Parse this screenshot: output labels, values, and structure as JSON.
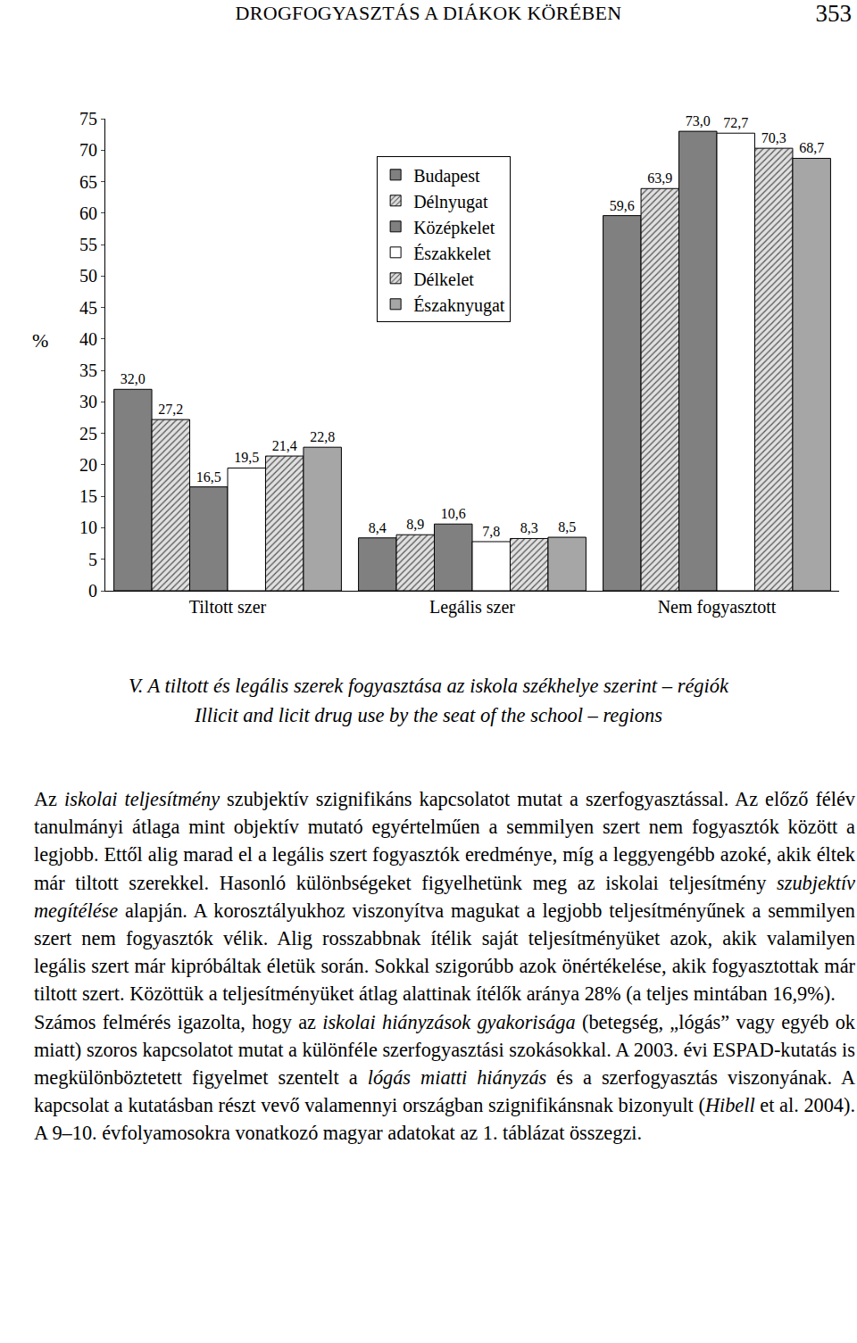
{
  "header": {
    "title": "DROGFOGYASZTÁS A DIÁKOK KÖRÉBEN",
    "page": 353
  },
  "chart_data": {
    "type": "bar",
    "y_label": "%",
    "categories": [
      "Tiltott szer",
      "Legális szer",
      "Nem fogyasztott"
    ],
    "series": [
      {
        "name": "Budapest",
        "color": "#808080",
        "marker": "solid",
        "values": [
          32.0,
          8.4,
          59.6
        ],
        "value_labels": [
          "32,0",
          "8,4",
          "59,6"
        ]
      },
      {
        "name": "Délnyugat",
        "color": "#e0e0e0",
        "marker": "hatched",
        "values": [
          27.2,
          8.9,
          63.9
        ],
        "value_labels": [
          "27,2",
          "8,9",
          "63,9"
        ]
      },
      {
        "name": "Középkelet",
        "color": "#808080",
        "marker": "solid",
        "values": [
          16.5,
          10.6,
          73.0
        ],
        "value_labels": [
          "16,5",
          "10,6",
          "73,0"
        ]
      },
      {
        "name": "Északkelet",
        "color": "#ffffff",
        "marker": "solid",
        "values": [
          19.5,
          7.8,
          72.7
        ],
        "value_labels": [
          "19,5",
          "7,8",
          "72,7"
        ]
      },
      {
        "name": "Délkelet",
        "color": "#e0e0e0",
        "marker": "hatched",
        "values": [
          21.4,
          8.3,
          70.3
        ],
        "value_labels": [
          "21,4",
          "8,3",
          "70,3"
        ]
      },
      {
        "name": "Északnyugat",
        "color": "#a6a6a6",
        "marker": "solid",
        "values": [
          22.8,
          8.5,
          68.7
        ],
        "value_labels": [
          "22,8",
          "8,5",
          "68,7"
        ]
      }
    ],
    "ylim": [
      0,
      75
    ],
    "yticks": [
      0,
      5,
      10,
      15,
      20,
      25,
      30,
      35,
      40,
      45,
      50,
      55,
      60,
      65,
      70,
      75
    ],
    "grid": false,
    "legend": "top",
    "data_labels": true
  },
  "caption": [
    "V. A tiltott és legális szerek fogyasztása az iskola székhelye szerint – régiók",
    "Illicit and licit drug use by the seat of the school – regions"
  ],
  "paragraphs": [
    [
      {
        "text": "Az ",
        "italic": false
      },
      {
        "text": "iskolai teljesítmény",
        "italic": true
      },
      {
        "text": " szubjektív szignifikáns kapcsolatot mutat a szerfogyasztással. Az előző félév tanulmányi átlaga mint objektív mutató egyértelműen a semmilyen szert nem fogyasztók között a legjobb. Ettől alig marad el a legális szert fogyasztók eredménye, míg a leggyengébb azoké, akik éltek már tiltott szerekkel. Hasonló különbségeket figyelhetünk meg az iskolai teljesítmény ",
        "italic": false
      },
      {
        "text": "szubjektív megítélése",
        "italic": true
      },
      {
        "text": " alapján. A korosztályukhoz viszonyítva magukat a legjobb teljesítményűnek a semmilyen szert nem fogyasztók vélik. Alig rosszabbnak ítélik saját teljesítményüket azok, akik valamilyen legális szert már kipróbáltak életük során. Sokkal szigorúbb azok önértékelése, akik fogyasztottak már tiltott szert. Közöttük a teljesítményüket átlag alattinak ítélők aránya 28% (a teljes mintában 16,9%).",
        "italic": false
      }
    ],
    [
      {
        "text": "Számos felmérés igazolta, hogy az ",
        "italic": false
      },
      {
        "text": "iskolai hiányzások gyakorisága",
        "italic": true
      },
      {
        "text": " (betegség, „lógás” vagy egyéb ok miatt) szoros kapcsolatot mutat a különféle szerfogyasztási szokásokkal. A 2003. évi ESPAD-kutatás is megkülönböztetett figyelmet szentelt a ",
        "italic": false
      },
      {
        "text": "lógás miatti hiányzás",
        "italic": true
      },
      {
        "text": " és a szerfogyasztás viszonyának. A kapcsolat a kutatásban részt vevő valamennyi országban szignifikánsnak bizonyult (",
        "italic": false
      },
      {
        "text": "Hibell",
        "italic": true
      },
      {
        "text": " et al. 2004). A 9–10. évfolyamosokra vonatkozó magyar adatokat az 1. táblázat összegzi.",
        "italic": false
      }
    ]
  ]
}
